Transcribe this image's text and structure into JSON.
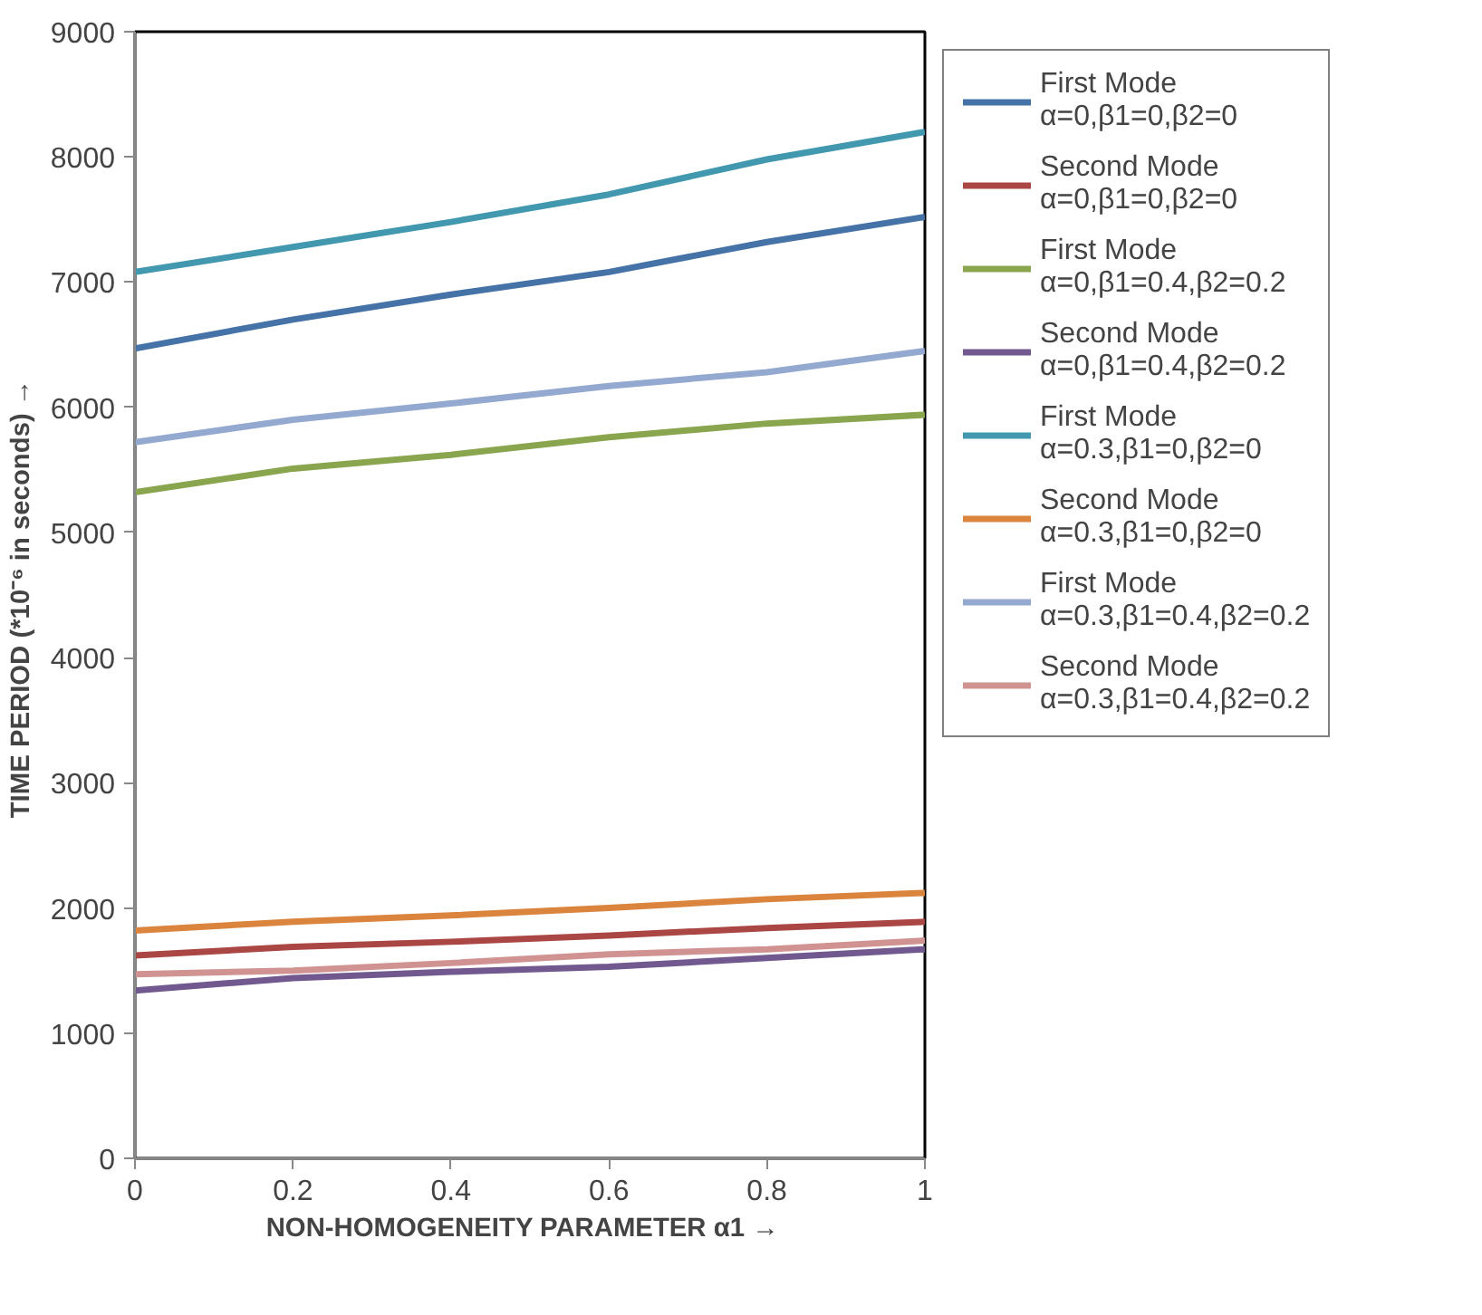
{
  "chart_data": {
    "type": "line",
    "xlabel": "NON-HOMOGENEITY PARAMETER  α1  →",
    "ylabel": "TIME PERIOD (*10⁻⁶ in seconds)  →",
    "x": [
      0,
      0.2,
      0.4,
      0.6,
      0.8,
      1
    ],
    "xlim": [
      0,
      1
    ],
    "xticks": [
      0,
      0.2,
      0.4,
      0.6,
      0.8,
      1
    ],
    "ylim": [
      0,
      9000
    ],
    "yticks": [
      0,
      1000,
      2000,
      3000,
      4000,
      5000,
      6000,
      7000,
      8000,
      9000
    ],
    "grid": false,
    "legend": "right",
    "line_style": "solid",
    "marker": "none",
    "series": [
      {
        "name": "First Mode\nα=0,β1=0,β2=0",
        "color": "#4572a7",
        "values": [
          6470,
          6700,
          6900,
          7080,
          7320,
          7520
        ]
      },
      {
        "name": "Second Mode\nα=0,β1=0,β2=0",
        "color": "#aa4643",
        "values": [
          1620,
          1690,
          1730,
          1780,
          1840,
          1890
        ]
      },
      {
        "name": "First Mode\nα=0,β1=0.4,β2=0.2",
        "color": "#89a54e",
        "values": [
          5320,
          5510,
          5620,
          5760,
          5870,
          5940
        ]
      },
      {
        "name": "Second Mode\nα=0,β1=0.4,β2=0.2",
        "color": "#71588f",
        "values": [
          1340,
          1440,
          1490,
          1530,
          1600,
          1670
        ]
      },
      {
        "name": "First Mode\nα=0.3,β1=0,β2=0",
        "color": "#4198af",
        "values": [
          7080,
          7280,
          7480,
          7700,
          7980,
          8200
        ]
      },
      {
        "name": "Second Mode\nα=0.3,β1=0,β2=0",
        "color": "#db843d",
        "values": [
          1820,
          1890,
          1940,
          2000,
          2070,
          2120
        ]
      },
      {
        "name": "First Mode\nα=0.3,β1=0.4,β2=0.2",
        "color": "#93a9cf",
        "values": [
          5720,
          5900,
          6030,
          6170,
          6280,
          6450
        ]
      },
      {
        "name": "Second Mode\nα=0.3,β1=0.4,β2=0.2",
        "color": "#d19392",
        "values": [
          1470,
          1500,
          1560,
          1630,
          1670,
          1740
        ]
      }
    ]
  }
}
